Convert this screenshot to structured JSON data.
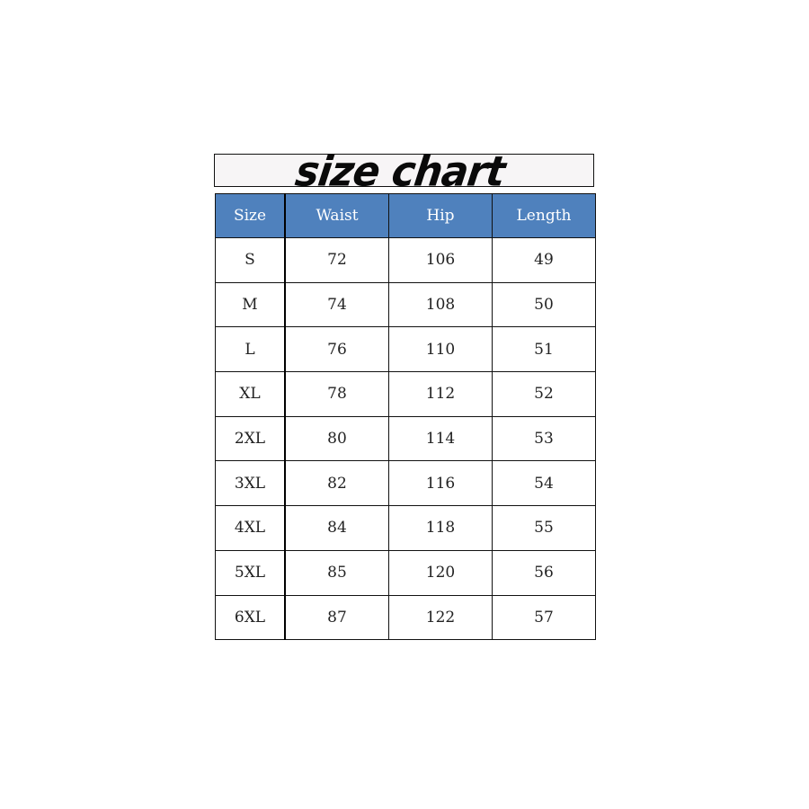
{
  "title": "size chart",
  "colors": {
    "header_bg": "#4f81bd",
    "header_text": "#ffffff",
    "title_bg": "#f7f5f6"
  },
  "headers": [
    "Size",
    "Waist",
    "Hip",
    "Length"
  ],
  "rows": [
    [
      "S",
      "72",
      "106",
      "49"
    ],
    [
      "M",
      "74",
      "108",
      "50"
    ],
    [
      "L",
      "76",
      "110",
      "51"
    ],
    [
      "XL",
      "78",
      "112",
      "52"
    ],
    [
      "2XL",
      "80",
      "114",
      "53"
    ],
    [
      "3XL",
      "82",
      "116",
      "54"
    ],
    [
      "4XL",
      "84",
      "118",
      "55"
    ],
    [
      "5XL",
      "85",
      "120",
      "56"
    ],
    [
      "6XL",
      "87",
      "122",
      "57"
    ]
  ]
}
